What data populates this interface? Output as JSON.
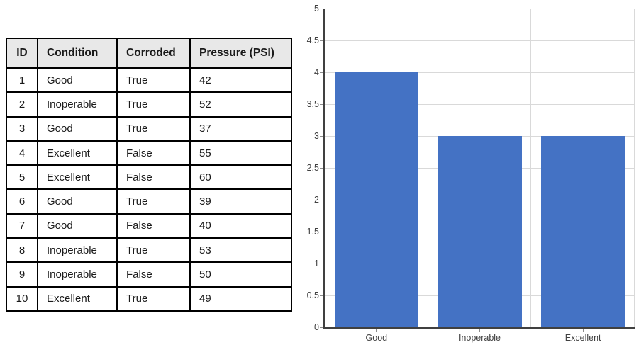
{
  "table": {
    "columns": [
      "ID",
      "Condition",
      "Corroded",
      "Pressure (PSI)"
    ],
    "rows": [
      [
        "1",
        "Good",
        "True",
        "42"
      ],
      [
        "2",
        "Inoperable",
        "True",
        "52"
      ],
      [
        "3",
        "Good",
        "True",
        "37"
      ],
      [
        "4",
        "Excellent",
        "False",
        "55"
      ],
      [
        "5",
        "Excellent",
        "False",
        "60"
      ],
      [
        "6",
        "Good",
        "True",
        "39"
      ],
      [
        "7",
        "Good",
        "False",
        "40"
      ],
      [
        "8",
        "Inoperable",
        "True",
        "53"
      ],
      [
        "9",
        "Inoperable",
        "False",
        "50"
      ],
      [
        "10",
        "Excellent",
        "True",
        "49"
      ]
    ]
  },
  "chart_data": {
    "type": "bar",
    "categories": [
      "Good",
      "Inoperable",
      "Excellent"
    ],
    "values": [
      4,
      3,
      3
    ],
    "title": "",
    "xlabel": "",
    "ylabel": "",
    "ylim": [
      0,
      5
    ],
    "ytick_step": 0.5,
    "grid": true,
    "legend": false,
    "bar_color": "#4472C4",
    "axis_color": "#404040",
    "grid_color": "#d9d9d9",
    "label_color": "#404040"
  }
}
